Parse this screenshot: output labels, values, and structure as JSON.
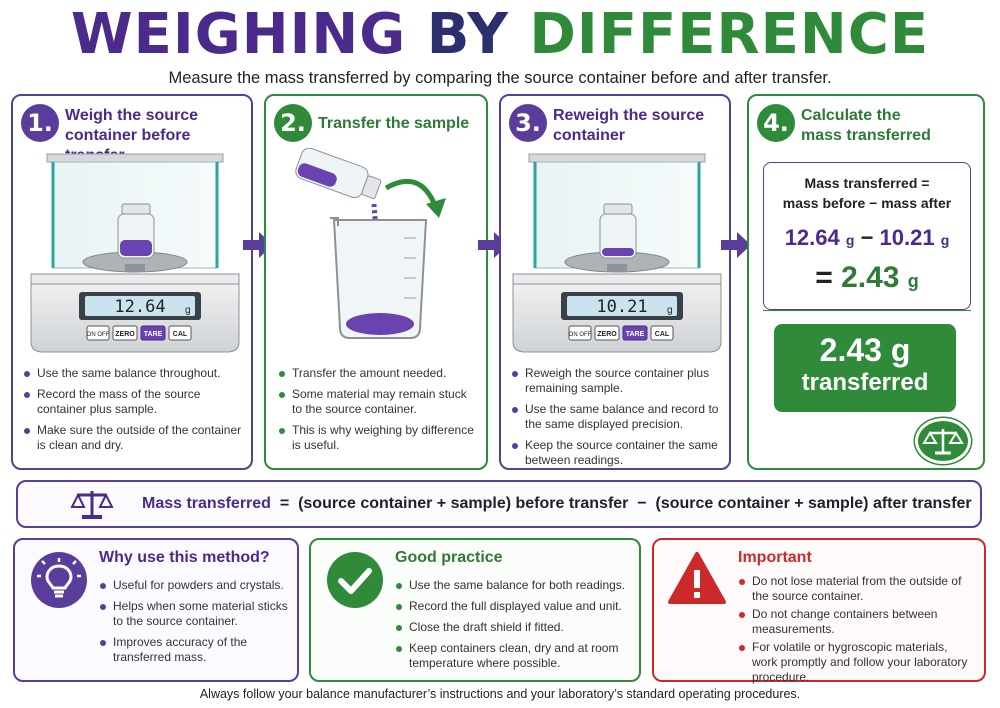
{
  "title": {
    "part1": "WEIGHING",
    "part2": "BY",
    "part3": "DIFFERENCE"
  },
  "subtitle": "Measure the mass transferred by comparing the source container before and after transfer.",
  "steps": [
    {
      "number": "1.",
      "title_line1": "Weigh the source",
      "title_line2": "container before transfer",
      "display": "12.64",
      "unit": "g",
      "buttons": [
        "ON OFF",
        "ZERO",
        "TARE",
        "CAL"
      ],
      "bullets": [
        "Use the same balance throughout.",
        "Record the mass of the source container plus sample.",
        "Make sure the outside of the container is clean and dry."
      ]
    },
    {
      "number": "2.",
      "title_line1": "Transfer the sample",
      "bullets": [
        "Transfer the amount needed.",
        "Some material may remain stuck to the source container.",
        "This is why weighing by difference is useful."
      ]
    },
    {
      "number": "3.",
      "title_line1": "Reweigh the source",
      "title_line2": "container",
      "display": "10.21",
      "unit": "g",
      "buttons": [
        "ON OFF",
        "ZERO",
        "TARE",
        "CAL"
      ],
      "bullets": [
        "Reweigh the source container plus remaining sample.",
        "Use the same balance and record to the same displayed precision.",
        "Keep the source container the same between readings."
      ]
    },
    {
      "number": "4.",
      "title_line1": "Calculate the",
      "title_line2": "mass transferred",
      "calc_label_line1": "Mass transferred =",
      "calc_label_line2": "mass before − mass after",
      "calc_before": "12.64",
      "calc_after": "10.21",
      "calc_unit": "g",
      "calc_minus": "−",
      "calc_equals": "=",
      "calc_result": "2.43",
      "result_value": "2.43 g",
      "result_label": "transferred"
    }
  ],
  "formula": {
    "label": "Mass transferred",
    "eq": "=",
    "before": "(source container + sample) before transfer",
    "minus": "−",
    "after": "(source container + sample) after transfer"
  },
  "why": {
    "title": "Why use this method?",
    "icon": "lightbulb-icon",
    "bullets": [
      "Useful for powders and crystals.",
      "Helps when some material sticks to the source container.",
      "Improves accuracy of the transferred mass."
    ]
  },
  "good": {
    "title": "Good practice",
    "icon": "checkmark-icon",
    "bullets": [
      "Use the same balance for both readings.",
      "Record the full displayed value and unit.",
      "Close the draft shield if fitted.",
      "Keep containers clean, dry and at room temperature where possible."
    ]
  },
  "important": {
    "title": "Important",
    "icon": "warning-icon",
    "bullets": [
      "Do not lose material from the outside of the source container.",
      "Do not change containers between measurements.",
      "For volatile or hygroscopic materials, work promptly and follow your laboratory procedure."
    ]
  },
  "footer": "Always follow your balance manufacturer’s instructions and your laboratory’s standard operating procedures.",
  "colors": {
    "purple": "#5a3d9a",
    "green": "#2f8a3a",
    "red": "#cc2a2a",
    "navy": "#2c2f6e"
  }
}
